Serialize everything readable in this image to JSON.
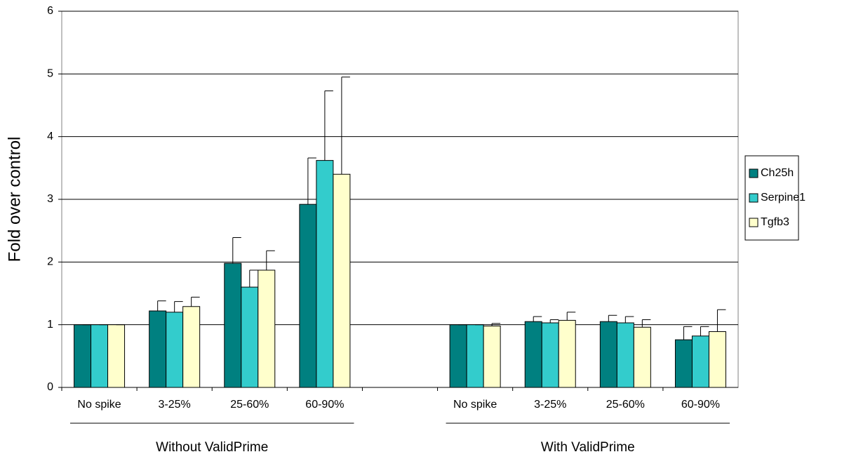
{
  "chart_data": {
    "type": "bar",
    "y_label": "Fold over control",
    "categories": [
      "No spike",
      "3-25%",
      "25-60%",
      "60-90%",
      null,
      "No spike",
      "3-25%",
      "25-60%",
      "60-90%"
    ],
    "group_labels": [
      "Without ValidPrime",
      "With ValidPrime"
    ],
    "series": [
      {
        "name": "Ch25h",
        "color": "#008080",
        "values": [
          1,
          1.22,
          1.98,
          2.92,
          null,
          1,
          1.05,
          1.05,
          0.76
        ],
        "errors": [
          0,
          0.16,
          0.41,
          0.74,
          null,
          0,
          0.08,
          0.1,
          0.21
        ]
      },
      {
        "name": "Serpine1",
        "color": "#33cccc",
        "values": [
          1,
          1.2,
          1.6,
          3.62,
          null,
          1,
          1.03,
          1.03,
          0.82
        ],
        "errors": [
          0,
          0.17,
          0.27,
          1.11,
          null,
          0,
          0.05,
          0.1,
          0.15
        ]
      },
      {
        "name": "Tgfb3",
        "color": "#ffffcc",
        "values": [
          1,
          1.29,
          1.87,
          3.4,
          null,
          0.98,
          1.07,
          0.96,
          0.89
        ],
        "errors": [
          0,
          0.15,
          0.31,
          1.55,
          null,
          0.04,
          0.13,
          0.12,
          0.35
        ]
      }
    ],
    "ylim": [
      0,
      6
    ],
    "yticks": [
      0,
      1,
      2,
      3,
      4,
      5,
      6
    ],
    "grid": true,
    "legend": "right"
  }
}
